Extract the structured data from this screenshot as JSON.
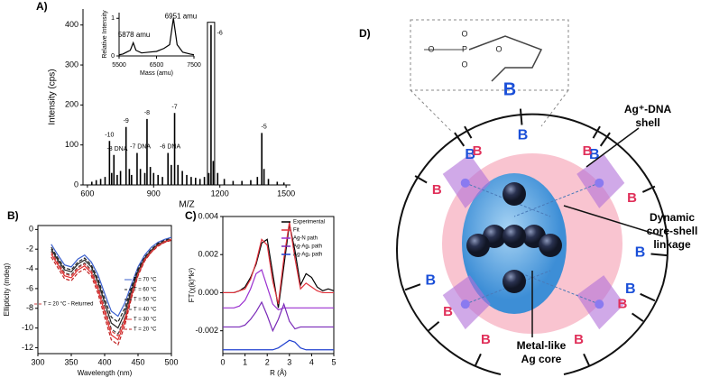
{
  "chart_data": [
    {
      "type": "stem",
      "label": "A)",
      "xlabel": "M/Z",
      "ylabel": "Intensity (cps)",
      "color": "#000000",
      "x": [
        620,
        640,
        660,
        680,
        700,
        710,
        720,
        735,
        750,
        775,
        790,
        800,
        825,
        840,
        860,
        870,
        885,
        900,
        920,
        940,
        965,
        980,
        995,
        1010,
        1030,
        1050,
        1070,
        1090,
        1110,
        1130,
        1150,
        1160,
        1170,
        1190,
        1220,
        1260,
        1300,
        1340,
        1370,
        1390,
        1400,
        1420,
        1460,
        1490
      ],
      "values": [
        8,
        12,
        15,
        20,
        110,
        30,
        75,
        25,
        35,
        145,
        40,
        25,
        80,
        40,
        30,
        165,
        45,
        30,
        25,
        20,
        80,
        50,
        180,
        50,
        35,
        25,
        20,
        18,
        15,
        20,
        30,
        400,
        60,
        30,
        15,
        10,
        10,
        12,
        20,
        130,
        40,
        15,
        8,
        6
      ],
      "xlim": [
        580,
        1520
      ],
      "xticks": [
        600,
        900,
        1200,
        1500
      ],
      "ylim": [
        0,
        440
      ],
      "yticks": [
        0,
        100,
        200,
        300,
        400
      ],
      "highlight_max": true,
      "annotations": [
        {
          "text": "-10",
          "x": 700,
          "y": 125
        },
        {
          "text": "-9",
          "x": 775,
          "y": 160
        },
        {
          "text": "-8",
          "x": 870,
          "y": 180
        },
        {
          "text": "-7",
          "x": 995,
          "y": 195
        },
        {
          "text": "-6",
          "x": 1200,
          "y": 380
        },
        {
          "text": "-5",
          "x": 1400,
          "y": 145
        },
        {
          "text": "-8 DNA",
          "x": 735,
          "y": 90
        },
        {
          "text": "-7 DNA",
          "x": 840,
          "y": 95
        },
        {
          "text": "-6 DNA",
          "x": 975,
          "y": 95
        }
      ]
    },
    {
      "type": "line",
      "xlabel": "Mass (amu)",
      "ylabel": "Relative Intensity",
      "color": "#000000",
      "x": [
        5500,
        5600,
        5700,
        5800,
        5878,
        5950,
        6100,
        6300,
        6500,
        6700,
        6850,
        6951,
        7050,
        7200,
        7400,
        7500
      ],
      "values": [
        0.03,
        0.05,
        0.1,
        0.15,
        0.35,
        0.15,
        0.08,
        0.1,
        0.12,
        0.2,
        0.3,
        1.0,
        0.3,
        0.1,
        0.05,
        0.03
      ],
      "xlim": [
        5500,
        7500
      ],
      "xticks": [
        5500,
        6500,
        7500
      ],
      "ylim": [
        0,
        1.15
      ],
      "yticks": [
        0,
        1
      ],
      "annotations": [
        {
          "text": "5878 amu",
          "x": 5900,
          "y": 0.55
        },
        {
          "text": "6951 amu",
          "x": 7150,
          "y": 1.05
        }
      ]
    },
    {
      "type": "line",
      "label": "B)",
      "xlabel": "Wavelength (nm)",
      "ylabel": "Ellipticity (mdeg)",
      "legend": "right",
      "x": [
        320,
        330,
        340,
        350,
        360,
        370,
        380,
        390,
        400,
        410,
        420,
        430,
        440,
        450,
        460,
        470,
        480,
        490,
        500
      ],
      "xlim": [
        300,
        500
      ],
      "xticks": [
        300,
        350,
        400,
        450,
        500
      ],
      "ylim": [
        -12.6,
        0.4
      ],
      "yticks": [
        0,
        -2,
        -4,
        -6,
        -8,
        -10,
        -12
      ],
      "series": [
        {
          "name": "T = 70 °C",
          "color": "#3a5fcd",
          "dash": false,
          "values": [
            -1.5,
            -2.6,
            -3.6,
            -3.8,
            -3.0,
            -2.6,
            -3.3,
            -4.6,
            -6.5,
            -8.3,
            -8.8,
            -7.5,
            -5.6,
            -3.8,
            -2.6,
            -1.8,
            -1.3,
            -1.0,
            -0.8
          ]
        },
        {
          "name": "T = 60 °C",
          "color": "#222222",
          "dash": true,
          "values": [
            -1.8,
            -2.9,
            -3.9,
            -4.1,
            -3.3,
            -2.9,
            -3.6,
            -5.0,
            -7.0,
            -8.9,
            -9.4,
            -8.0,
            -5.9,
            -4.0,
            -2.8,
            -2.0,
            -1.4,
            -1.1,
            -0.9
          ]
        },
        {
          "name": "T = 50 °C",
          "color": "#222222",
          "dash": false,
          "values": [
            -2.0,
            -3.1,
            -4.1,
            -4.3,
            -3.5,
            -3.1,
            -3.8,
            -5.3,
            -7.4,
            -9.5,
            -10.0,
            -8.5,
            -6.2,
            -4.2,
            -2.9,
            -2.1,
            -1.5,
            -1.2,
            -1.0
          ]
        },
        {
          "name": "T = 40 °C",
          "color": "#444444",
          "dash": true,
          "values": [
            -2.2,
            -3.3,
            -4.4,
            -4.6,
            -3.8,
            -3.4,
            -4.1,
            -5.7,
            -7.9,
            -10.1,
            -10.6,
            -9.0,
            -6.5,
            -4.4,
            -3.0,
            -2.2,
            -1.6,
            -1.2,
            -1.0
          ]
        },
        {
          "name": "T = 30 °C",
          "color": "#e03030",
          "dash": false,
          "values": [
            -2.5,
            -3.6,
            -4.7,
            -4.9,
            -4.1,
            -3.7,
            -4.4,
            -6.1,
            -8.4,
            -10.7,
            -11.2,
            -9.4,
            -6.8,
            -4.6,
            -3.1,
            -2.3,
            -1.6,
            -1.3,
            -1.0
          ]
        },
        {
          "name": "T = 20 °C",
          "color": "#c02020",
          "dash": true,
          "values": [
            -2.8,
            -3.9,
            -5.0,
            -5.2,
            -4.4,
            -4.0,
            -4.7,
            -6.5,
            -8.9,
            -11.2,
            -11.7,
            -9.8,
            -7.0,
            -4.7,
            -3.2,
            -2.3,
            -1.7,
            -1.3,
            -1.1
          ]
        },
        {
          "name": "T = 20 °C - Returned",
          "color": "#d04040",
          "dash": true,
          "values": [
            -2.3,
            -3.4,
            -4.5,
            -4.7,
            -3.9,
            -3.5,
            -4.2,
            -5.8,
            -8.0,
            -10.3,
            -10.8,
            -9.1,
            -6.6,
            -4.5,
            -3.0,
            -2.2,
            -1.6,
            -1.2,
            -1.0
          ]
        }
      ]
    },
    {
      "type": "line",
      "label": "C)",
      "xlabel": "R (Å)",
      "ylabel": "FT(χ(k)*k²)",
      "legend": "upper right",
      "x": [
        0,
        0.25,
        0.5,
        0.75,
        1,
        1.25,
        1.5,
        1.75,
        2,
        2.25,
        2.5,
        2.75,
        3,
        3.25,
        3.5,
        3.75,
        4,
        4.25,
        4.5,
        4.75,
        5
      ],
      "xlim": [
        0,
        5
      ],
      "xticks": [
        0,
        1,
        2,
        3,
        4,
        5
      ],
      "ylim": [
        -0.0032,
        0.004
      ],
      "yticks": [
        -0.002,
        {
          "value": 0,
          "label": "0.000"
        },
        0.002,
        0.004
      ],
      "series": [
        {
          "name": "Experimental",
          "color": "#000000",
          "values": [
            0,
            0,
            0,
            0.0001,
            0.0003,
            0.0008,
            0.0015,
            0.0026,
            0.0028,
            0.001,
            -0.0008,
            0.0014,
            0.0036,
            0.0022,
            0.0004,
            0.001,
            0.0008,
            0.0003,
            0.0001,
            0.0002,
            0.0001
          ]
        },
        {
          "name": "Fit",
          "color": "#e0303a",
          "values": [
            0,
            0,
            0,
            0.0001,
            0.0002,
            0.0007,
            0.0016,
            0.0028,
            0.0025,
            0.0006,
            -0.0006,
            0.0018,
            0.0037,
            0.0018,
            0.0002,
            0.0005,
            0.0003,
            0.0001,
            0,
            0,
            0
          ]
        },
        {
          "name": "Ag-N path",
          "color": "#9b30d0",
          "values": [
            -0.0008,
            -0.0008,
            -0.0008,
            -0.0007,
            -0.0004,
            0.0002,
            0.001,
            0.0012,
            0.0003,
            -0.0006,
            -0.0009,
            -0.0008,
            -0.0008,
            -0.0008,
            -0.0008,
            -0.0008,
            -0.0008,
            -0.0008,
            -0.0008,
            -0.0008,
            -0.0008
          ]
        },
        {
          "name": "Ag-Ag₁ path",
          "color": "#7a2ab8",
          "values": [
            -0.0018,
            -0.0018,
            -0.0018,
            -0.0018,
            -0.0017,
            -0.0014,
            -0.001,
            -0.0005,
            -0.0012,
            -0.002,
            -0.0014,
            -0.0006,
            -0.0015,
            -0.0019,
            -0.0018,
            -0.0018,
            -0.0018,
            -0.0018,
            -0.0018,
            -0.0018,
            -0.0018
          ]
        },
        {
          "name": "Ag-Ag₂ path",
          "color": "#2040d0",
          "values": [
            -0.003,
            -0.003,
            -0.003,
            -0.003,
            -0.003,
            -0.003,
            -0.003,
            -0.003,
            -0.003,
            -0.003,
            -0.0029,
            -0.0027,
            -0.0025,
            -0.0026,
            -0.0029,
            -0.003,
            -0.003,
            -0.003,
            -0.003,
            -0.003,
            -0.003
          ]
        }
      ]
    }
  ],
  "diagram": {
    "label": "D)",
    "chem": [
      "O",
      "P",
      "O",
      "O",
      "O",
      "B"
    ],
    "outer_letters": [
      "B",
      "B",
      "B",
      "B",
      "B",
      "B"
    ],
    "inner_letters": [
      "B",
      "B",
      "B",
      "B",
      "B",
      "B",
      "B",
      "B"
    ],
    "shell_label": [
      "Ag⁺-DNA",
      "shell"
    ],
    "linkage_label": [
      "Dynamic",
      "core-shell",
      "linkage"
    ],
    "core_label": [
      "Metal-like",
      "Ag core"
    ]
  }
}
